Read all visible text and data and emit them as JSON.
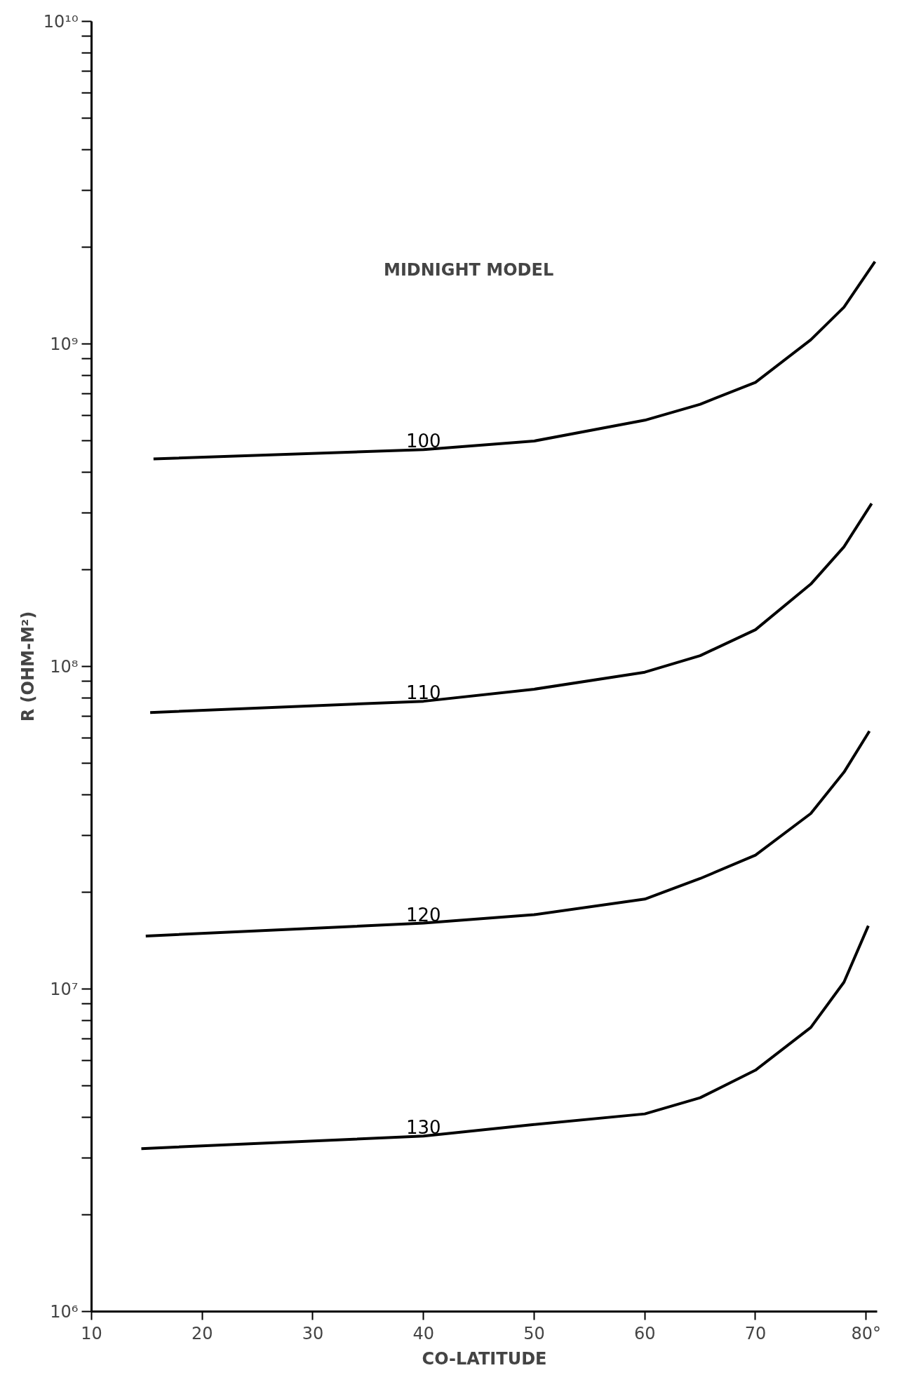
{
  "chart_data": {
    "type": "line",
    "title": "MIDNIGHT MODEL",
    "xlabel": "CO-LATITUDE",
    "ylabel": "R (OHM-M²)",
    "log": "y",
    "grid": false,
    "xlim": [
      10,
      81
    ],
    "ylim": [
      1000000,
      10000000000
    ],
    "xticks": [
      10,
      20,
      30,
      40,
      50,
      60,
      70,
      {
        "value": 80,
        "label": "80°"
      }
    ],
    "yticks": [
      {
        "value": 1000000,
        "label": "10⁶"
      },
      {
        "value": 2000000,
        "label": null
      },
      {
        "value": 3000000,
        "label": null
      },
      {
        "value": 4000000,
        "label": null
      },
      {
        "value": 5000000,
        "label": null
      },
      {
        "value": 6000000,
        "label": null
      },
      {
        "value": 7000000,
        "label": null
      },
      {
        "value": 8000000,
        "label": null
      },
      {
        "value": 9000000,
        "label": null
      },
      {
        "value": 10000000,
        "label": "10⁷"
      },
      {
        "value": 20000000,
        "label": null
      },
      {
        "value": 30000000,
        "label": null
      },
      {
        "value": 40000000,
        "label": null
      },
      {
        "value": 50000000,
        "label": null
      },
      {
        "value": 60000000,
        "label": null
      },
      {
        "value": 70000000,
        "label": null
      },
      {
        "value": 80000000,
        "label": null
      },
      {
        "value": 90000000,
        "label": null
      },
      {
        "value": 100000000,
        "label": "10⁸"
      },
      {
        "value": 200000000,
        "label": null
      },
      {
        "value": 300000000,
        "label": null
      },
      {
        "value": 400000000,
        "label": null
      },
      {
        "value": 500000000,
        "label": null
      },
      {
        "value": 600000000,
        "label": null
      },
      {
        "value": 700000000,
        "label": null
      },
      {
        "value": 800000000,
        "label": null
      },
      {
        "value": 900000000,
        "label": null
      },
      {
        "value": 1000000000,
        "label": "10⁹"
      },
      {
        "value": 2000000000,
        "label": null
      },
      {
        "value": 3000000000,
        "label": null
      },
      {
        "value": 4000000000,
        "label": null
      },
      {
        "value": 5000000000,
        "label": null
      },
      {
        "value": 6000000000,
        "label": null
      },
      {
        "value": 7000000000,
        "label": null
      },
      {
        "value": 8000000000,
        "label": null
      },
      {
        "value": 9000000000,
        "label": null
      },
      {
        "value": 10000000000,
        "label": "10¹⁰"
      }
    ],
    "series": [
      {
        "name": "100",
        "color": "#000000",
        "x": [
          15.6,
          40,
          50,
          60,
          65,
          70,
          75,
          78,
          80.8
        ],
        "values": [
          440000000,
          470000000,
          500000000,
          580000000,
          650000000,
          760000000,
          1030000000,
          1300000000,
          1800000000
        ]
      },
      {
        "name": "110",
        "color": "#000000",
        "x": [
          15.3,
          40,
          50,
          60,
          65,
          70,
          75,
          78,
          80.5
        ],
        "values": [
          72000000,
          78000000,
          85000000,
          96000000,
          108000000,
          130000000,
          180000000,
          235000000,
          320000000
        ]
      },
      {
        "name": "120",
        "color": "#000000",
        "x": [
          14.9,
          40,
          50,
          60,
          65,
          70,
          75,
          78,
          80.3
        ],
        "values": [
          14600000,
          16000000,
          17000000,
          19000000,
          22000000,
          26000000,
          35000000,
          47000000,
          63000000
        ]
      },
      {
        "name": "130",
        "color": "#000000",
        "x": [
          14.5,
          40,
          50,
          60,
          65,
          70,
          75,
          78,
          80.2
        ],
        "values": [
          3200000,
          3500000,
          3800000,
          4100000,
          4600000,
          5600000,
          7600000,
          10500000,
          15700000
        ]
      }
    ]
  }
}
